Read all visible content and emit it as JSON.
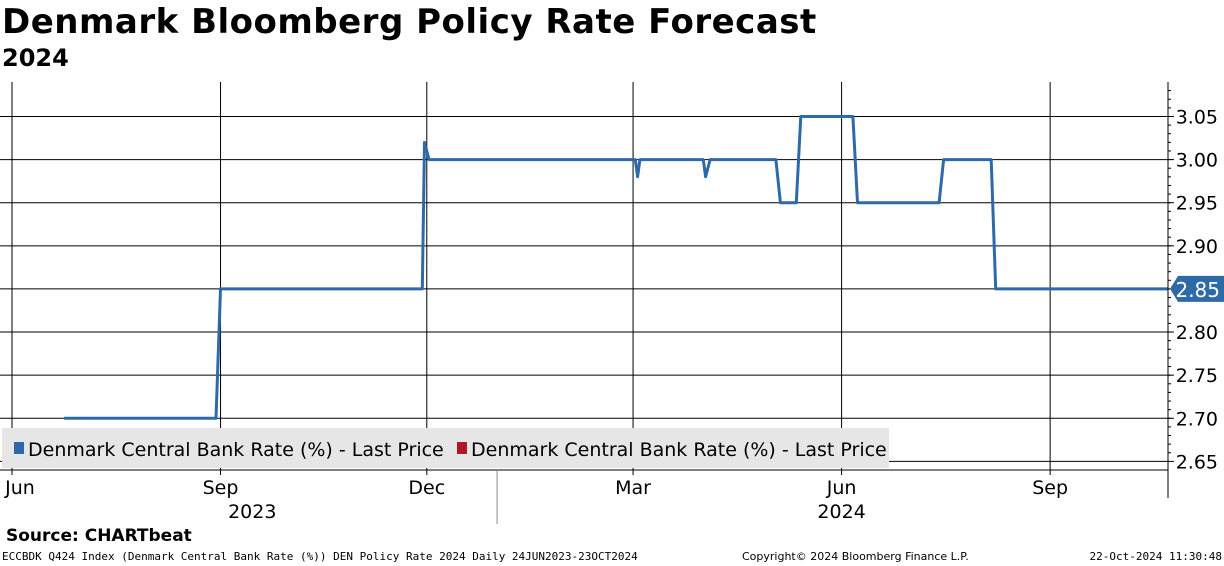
{
  "page": {
    "title": "Denmark Bloomberg Policy Rate Forecast",
    "subtitle": "2024",
    "source": "Source: CHARTbeat",
    "footer_left": "ECCBDK Q424 Index (Denmark Central Bank Rate (%)) DEN Policy Rate 2024  Daily 24JUN2023-23OCT2024",
    "footer_center": "Copyright© 2024 Bloomberg Finance L.P.",
    "footer_right": "22-Oct-2024 11:30:48"
  },
  "colors": {
    "series": "#2e6aa8",
    "series2": "#b0182a",
    "legend_bg": "#e6e6e6",
    "grid": "#000000"
  },
  "chart_data": {
    "type": "line",
    "title": "Denmark Bloomberg Policy Rate Forecast",
    "subtitle": "2024",
    "xlabel": "",
    "ylabel": "",
    "x_range": [
      "2023-06-24",
      "2024-10-23"
    ],
    "ylim": [
      2.64,
      3.09
    ],
    "y_ticks": [
      2.65,
      2.7,
      2.75,
      2.8,
      2.85,
      2.9,
      2.95,
      3.0,
      3.05
    ],
    "y_tick_labels": [
      "2.65",
      "2.70",
      "2.75",
      "2.80",
      "2.85",
      "2.90",
      "2.95",
      "3.00",
      "3.05"
    ],
    "x_ticks": [
      {
        "date": "2023-06-01",
        "label": "Jun"
      },
      {
        "date": "2023-09-01",
        "label": "Sep"
      },
      {
        "date": "2023-12-01",
        "label": "Dec"
      },
      {
        "date": "2024-03-01",
        "label": "Mar"
      },
      {
        "date": "2024-06-01",
        "label": "Jun"
      },
      {
        "date": "2024-09-01",
        "label": "Sep"
      }
    ],
    "year_labels": [
      {
        "date": "2023-09-15",
        "label": "2023"
      },
      {
        "date": "2024-06-01",
        "label": "2024"
      }
    ],
    "year_divider": "2024-01-01",
    "legend": [
      {
        "name": "Denmark Central Bank Rate (%) - Last Price",
        "color": "#2e6aa8"
      },
      {
        "name": "Denmark Central Bank Rate (%) - Last Price",
        "color": "#b0182a"
      }
    ],
    "last_value": {
      "value": 2.85,
      "label": "2.85"
    },
    "series": [
      {
        "name": "Denmark Central Bank Rate (%) - Last Price",
        "color": "#2e6aa8",
        "points": [
          [
            "2023-06-24",
            2.7
          ],
          [
            "2023-08-30",
            2.7
          ],
          [
            "2023-09-01",
            2.85
          ],
          [
            "2023-11-29",
            2.85
          ],
          [
            "2023-11-30",
            3.02
          ],
          [
            "2023-12-02",
            3.0
          ],
          [
            "2024-03-02",
            3.0
          ],
          [
            "2024-03-03",
            2.98
          ],
          [
            "2024-03-04",
            3.0
          ],
          [
            "2024-04-01",
            3.0
          ],
          [
            "2024-04-02",
            2.98
          ],
          [
            "2024-04-04",
            3.0
          ],
          [
            "2024-05-03",
            3.0
          ],
          [
            "2024-05-05",
            2.95
          ],
          [
            "2024-05-12",
            2.95
          ],
          [
            "2024-05-14",
            3.05
          ],
          [
            "2024-06-06",
            3.05
          ],
          [
            "2024-06-08",
            2.95
          ],
          [
            "2024-07-14",
            2.95
          ],
          [
            "2024-07-16",
            3.0
          ],
          [
            "2024-08-06",
            3.0
          ],
          [
            "2024-08-08",
            2.85
          ],
          [
            "2024-10-23",
            2.85
          ]
        ]
      }
    ]
  }
}
